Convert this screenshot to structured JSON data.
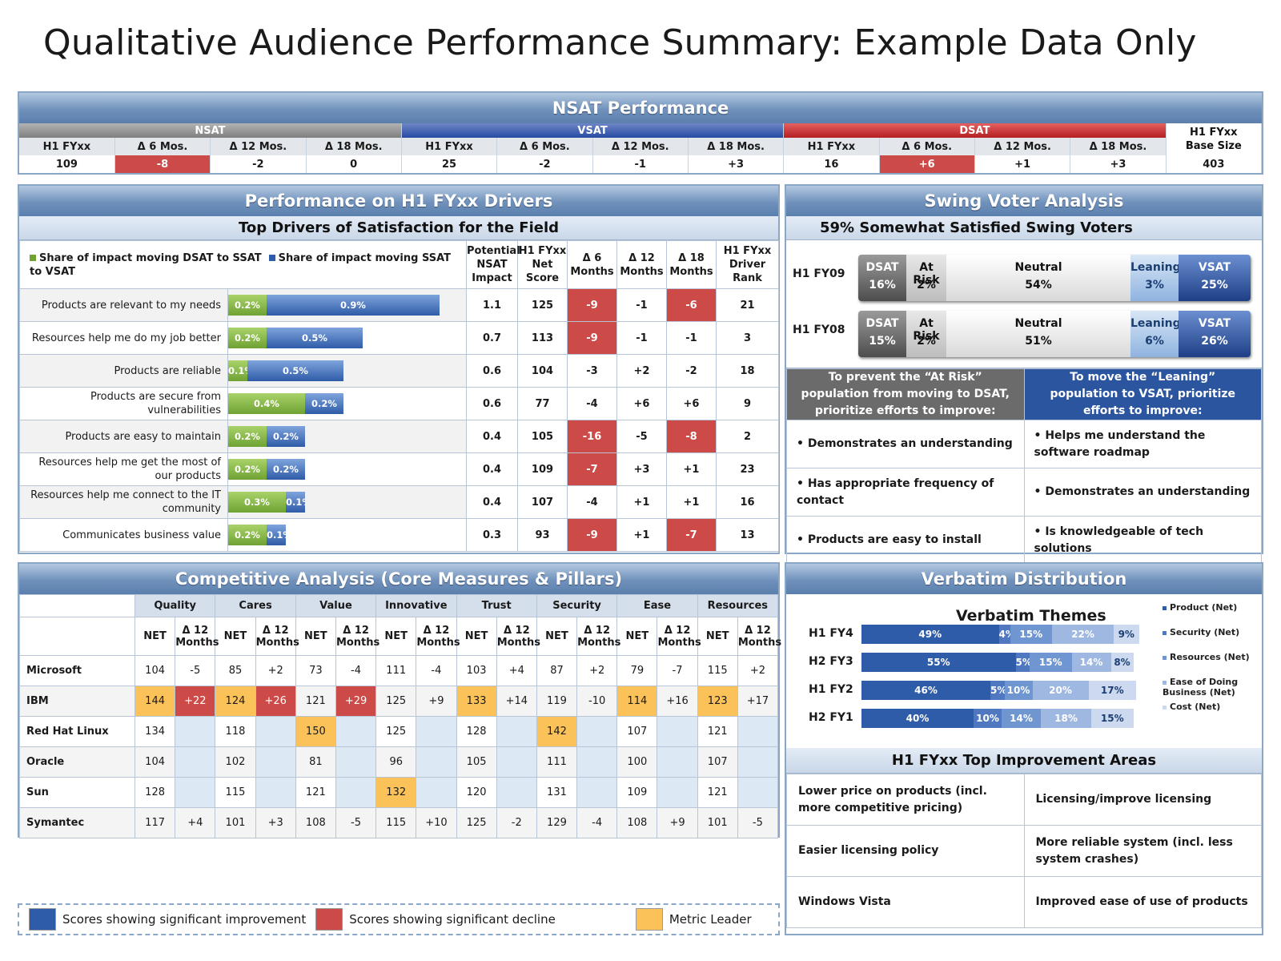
{
  "title": "Qualitative Audience Performance Summary: Example Data Only",
  "nsat": {
    "header": "NSAT Performance",
    "groups": {
      "nsat": "NSAT",
      "vsat": "VSAT",
      "dsat": "DSAT",
      "base_line1": "H1 FYxx",
      "base_line2": "Base Size"
    },
    "cols": [
      "H1 FYxx",
      "Δ 6 Mos.",
      "Δ 12 Mos.",
      "Δ 18 Mos.",
      "H1 FYxx",
      "Δ 6 Mos.",
      "Δ 12 Mos.",
      "Δ 18 Mos.",
      "H1 FYxx",
      "Δ 6 Mos.",
      "Δ 12 Mos.",
      "Δ 18 Mos."
    ],
    "values": [
      "109",
      "-8",
      "-2",
      "0",
      "25",
      "-2",
      "-1",
      "+3",
      "16",
      "+6",
      "+1",
      "+3",
      "403"
    ]
  },
  "drivers": {
    "header": "Performance on H1 FYxx Drivers",
    "subheader": "Top Drivers of Satisfaction for the Field",
    "legend_green": "Share of impact moving DSAT to SSAT",
    "legend_blue": "Share of impact moving SSAT to VSAT",
    "col1": "Potential NSAT Impact",
    "col2": "H1 FYxx Net Score",
    "col3": "Δ 6 Months",
    "col4": "Δ 12 Months",
    "col5": "Δ 18 Months",
    "col6": "H1 FYxx Driver Rank",
    "rows": [
      {
        "label": "Products are relevant to my needs",
        "g": "0.2%",
        "b": "0.9%",
        "gv": 0.2,
        "bv": 0.9,
        "impact": "1.1",
        "net": "125",
        "m6": "-9",
        "m12": "-1",
        "m18": "-6",
        "rank": "21"
      },
      {
        "label": "Resources help me do my job better",
        "g": "0.2%",
        "b": "0.5%",
        "gv": 0.2,
        "bv": 0.5,
        "impact": "0.7",
        "net": "113",
        "m6": "-9",
        "m12": "-1",
        "m18": "-1",
        "rank": "3"
      },
      {
        "label": "Products are reliable",
        "g": "0.1%",
        "b": "0.5%",
        "gv": 0.1,
        "bv": 0.5,
        "impact": "0.6",
        "net": "104",
        "m6": "-3",
        "m12": "+2",
        "m18": "-2",
        "rank": "18"
      },
      {
        "label": "Products are secure from vulnerabilities",
        "g": "0.4%",
        "b": "0.2%",
        "gv": 0.4,
        "bv": 0.2,
        "impact": "0.6",
        "net": "77",
        "m6": "-4",
        "m12": "+6",
        "m18": "+6",
        "rank": "9"
      },
      {
        "label": "Products are easy to maintain",
        "g": "0.2%",
        "b": "0.2%",
        "gv": 0.2,
        "bv": 0.2,
        "impact": "0.4",
        "net": "105",
        "m6": "-16",
        "m12": "-5",
        "m18": "-8",
        "rank": "2"
      },
      {
        "label": "Resources help me get the most of our products",
        "g": "0.2%",
        "b": "0.2%",
        "gv": 0.2,
        "bv": 0.2,
        "impact": "0.4",
        "net": "109",
        "m6": "-7",
        "m12": "+3",
        "m18": "+1",
        "rank": "23"
      },
      {
        "label": "Resources help me connect to the IT community",
        "g": "0.3%",
        "b": "0.1%",
        "gv": 0.3,
        "bv": 0.1,
        "impact": "0.4",
        "net": "107",
        "m6": "-4",
        "m12": "+1",
        "m18": "+1",
        "rank": "16"
      },
      {
        "label": "Communicates business value",
        "g": "0.2%",
        "b": "0.1%",
        "gv": 0.2,
        "bv": 0.1,
        "impact": "0.3",
        "net": "93",
        "m6": "-9",
        "m12": "+1",
        "m18": "-7",
        "rank": "13"
      }
    ],
    "red_cells": [
      "0-m6",
      "0-m18",
      "1-m6",
      "4-m6",
      "4-m18",
      "5-m6",
      "7-m6",
      "7-m18"
    ]
  },
  "swing": {
    "header": "Swing Voter Analysis",
    "subheader": "59% Somewhat Satisfied Swing Voters",
    "rows": [
      {
        "year": "H1 FY09",
        "dsat": "16%",
        "risk": "2%",
        "neutral": "54%",
        "lean": "3%",
        "vsat": "25%",
        "dv": 16,
        "rv": 2,
        "nv": 54,
        "lv": 3,
        "vv": 25
      },
      {
        "year": "H1 FY08",
        "dsat": "15%",
        "risk": "2%",
        "neutral": "51%",
        "lean": "6%",
        "vsat": "26%",
        "dv": 15,
        "rv": 2,
        "nv": 51,
        "lv": 6,
        "vv": 26
      }
    ],
    "labels": {
      "dsat": "DSAT",
      "risk": "At Risk",
      "neutral": "Neutral",
      "lean": "Leaning",
      "vsat": "VSAT"
    },
    "left_head": "To prevent the “At Risk” population from moving to DSAT, prioritize efforts to improve:",
    "right_head": "To move the “Leaning” population to VSAT, prioritize efforts to improve:",
    "left_items": [
      "• Demonstrates an understanding",
      "• Has appropriate frequency of contact",
      "• Products are easy to install"
    ],
    "right_items": [
      "• Helps me understand the software roadmap",
      "• Demonstrates an understanding",
      "• Is knowledgeable of tech solutions"
    ]
  },
  "comp": {
    "header": "Competitive Analysis (Core Measures & Pillars)",
    "groups": [
      "Quality",
      "Cares",
      "Value",
      "Innovative",
      "Trust",
      "Security",
      "Ease",
      "Resources"
    ],
    "net": "NET",
    "delta": "Δ 12 Months",
    "rows": [
      {
        "co": "Microsoft",
        "v": [
          "104",
          "-5",
          "85",
          "+2",
          "73",
          "-4",
          "111",
          "-4",
          "103",
          "+4",
          "87",
          "+2",
          "79",
          "-7",
          "115",
          "+2"
        ]
      },
      {
        "co": "IBM",
        "v": [
          "144",
          "+22",
          "124",
          "+26",
          "121",
          "+29",
          "125",
          "+9",
          "133",
          "+14",
          "119",
          "-10",
          "114",
          "+16",
          "123",
          "+17"
        ]
      },
      {
        "co": "Red Hat Linux",
        "v": [
          "134",
          "",
          "118",
          "",
          "150",
          "",
          "125",
          "",
          "128",
          "",
          "142",
          "",
          "107",
          "",
          "121",
          ""
        ]
      },
      {
        "co": "Oracle",
        "v": [
          "104",
          "",
          "102",
          "",
          "81",
          "",
          "96",
          "",
          "105",
          "",
          "111",
          "",
          "100",
          "",
          "107",
          ""
        ]
      },
      {
        "co": "Sun",
        "v": [
          "128",
          "",
          "115",
          "",
          "121",
          "",
          "132",
          "",
          "120",
          "",
          "131",
          "",
          "109",
          "",
          "121",
          ""
        ]
      },
      {
        "co": "Symantec",
        "v": [
          "117",
          "+4",
          "101",
          "+3",
          "108",
          "-5",
          "115",
          "+10",
          "125",
          "-2",
          "129",
          "-4",
          "108",
          "+9",
          "101",
          "-5"
        ]
      }
    ],
    "gold": [
      "1-0",
      "1-2",
      "1-8",
      "1-12",
      "1-14",
      "2-4",
      "2-10",
      "4-6"
    ],
    "red": [
      "1-1",
      "1-3",
      "1-5"
    ]
  },
  "legend": {
    "improve": "Scores showing significant improvement",
    "decline": "Scores showing significant decline",
    "leader": "Metric Leader",
    "colors": {
      "improve": "#2f5ca8",
      "decline": "#cc4a47",
      "leader": "#fbc25a"
    }
  },
  "verbatim": {
    "header": "Verbatim Distribution",
    "title": "Verbatim Themes",
    "rows": [
      {
        "y": "H1 FY4",
        "v": [
          49,
          4,
          15,
          22,
          9
        ],
        "l": [
          "49%",
          "4%",
          "15%",
          "22%",
          "9%"
        ]
      },
      {
        "y": "H2 FY3",
        "v": [
          55,
          5,
          15,
          14,
          8
        ],
        "l": [
          "55%",
          "5%",
          "15%",
          "14%",
          "8%"
        ]
      },
      {
        "y": "H1 FY2",
        "v": [
          46,
          5,
          10,
          20,
          17
        ],
        "l": [
          "46%",
          "5%",
          "10%",
          "20%",
          "17%"
        ]
      },
      {
        "y": "H2 FY1",
        "v": [
          40,
          10,
          14,
          18,
          15
        ],
        "l": [
          "40%",
          "10%",
          "14%",
          "18%",
          "15%"
        ]
      }
    ],
    "legend": [
      "Product (Net)",
      "Security (Net)",
      "Resources (Net)",
      "Ease of Doing Business (Net)",
      "Cost (Net)"
    ],
    "colors": [
      "#2f5ca8",
      "#4f78c0",
      "#7096d2",
      "#9fb8e2",
      "#ccd9ef"
    ],
    "improve_header": "H1 FYxx Top Improvement Areas",
    "improve": [
      [
        "Lower price on products (incl. more competitive pricing)",
        "Licensing/improve licensing"
      ],
      [
        "Easier licensing policy",
        "More reliable system (incl. less system crashes)"
      ],
      [
        "Windows Vista",
        "Improved ease of use of products"
      ]
    ]
  }
}
